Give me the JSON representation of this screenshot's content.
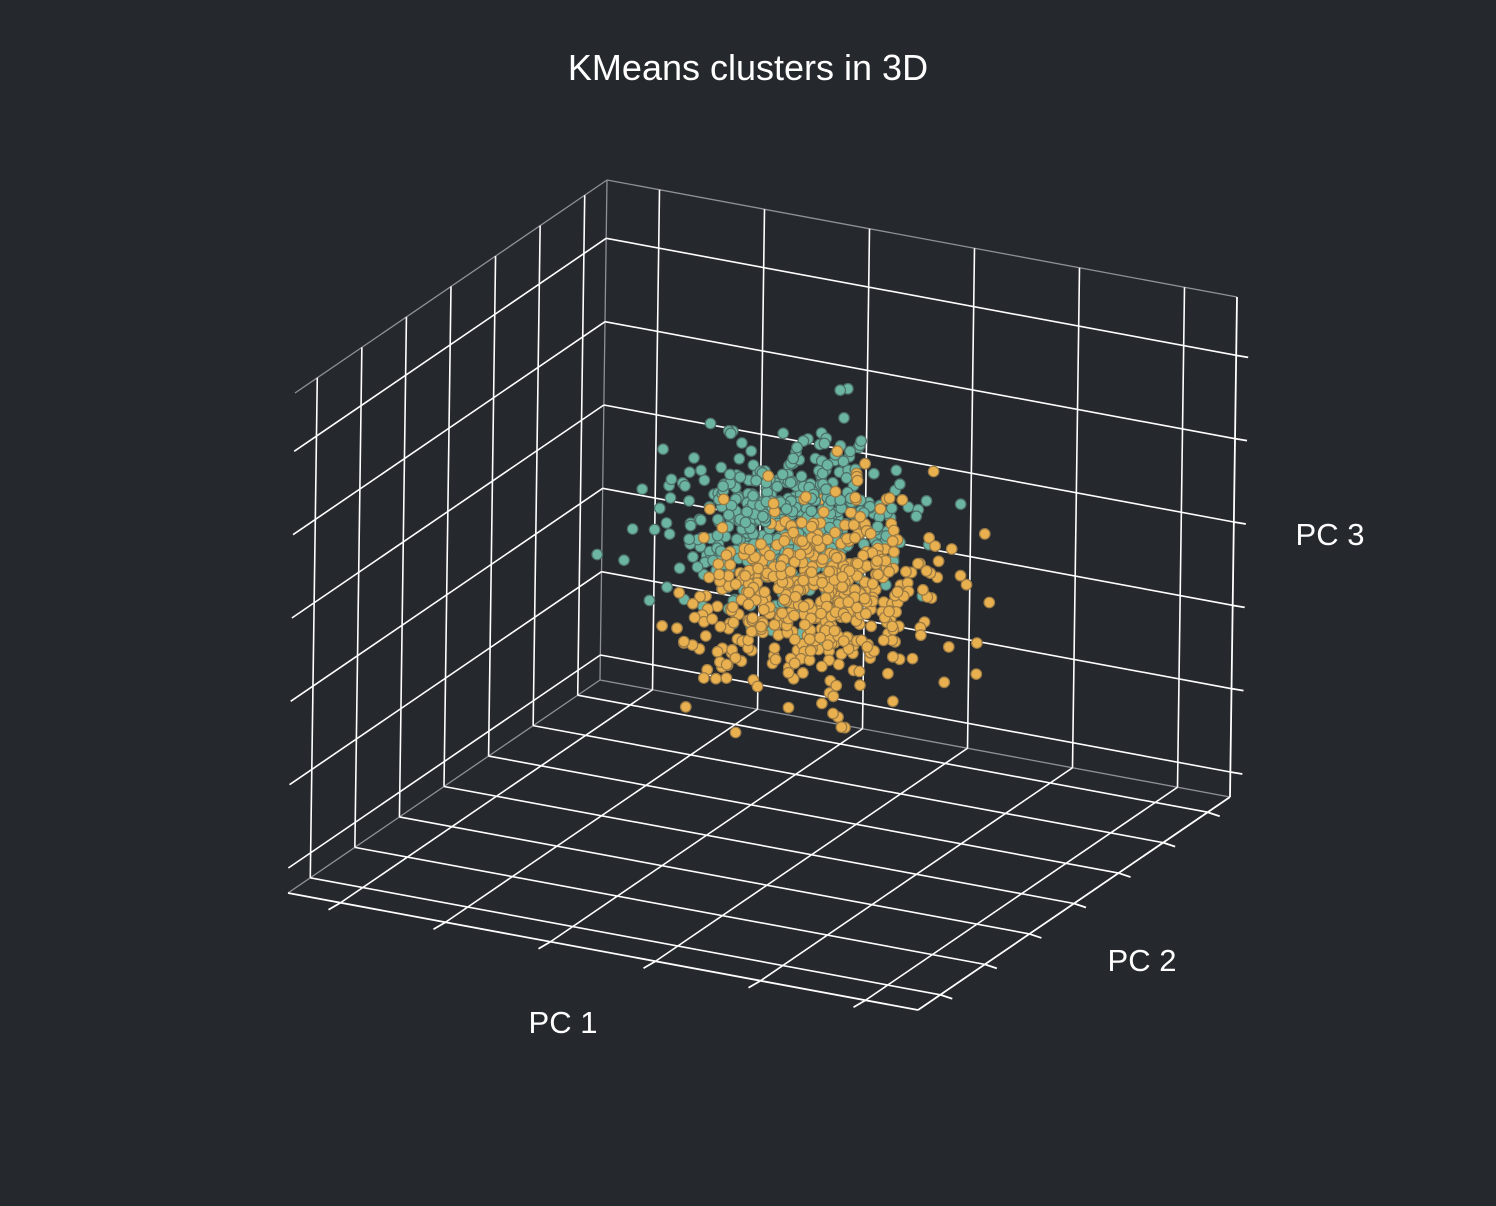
{
  "chart_data": {
    "type": "scatter",
    "projection": "3d",
    "title": "KMeans clusters in 3D",
    "xlabel": "PC 1",
    "ylabel": "PC 2",
    "zlabel": "PC 3",
    "xlim": [
      -4,
      4
    ],
    "ylim": [
      -3,
      3
    ],
    "zlim": [
      -3,
      2
    ],
    "grid": true,
    "legend": null,
    "background_color": "#25282d",
    "grid_color": "#ffffff",
    "tick_labels_shown": false,
    "point_count_estimate": 1000,
    "series": [
      {
        "cluster": 0,
        "color": "#6db5a3",
        "edge_color": "#4d6f68",
        "point_count_estimate": 500,
        "centroid": {
          "x": -0.6,
          "y": 1.3,
          "z": -0.3
        },
        "spread": {
          "x": 0.6,
          "y": 0.55,
          "z": 0.35
        },
        "extent": {
          "x": [
            -2.3,
            1.2
          ],
          "y": [
            -0.3,
            3.0
          ],
          "z": [
            -1.5,
            0.8
          ]
        }
      },
      {
        "cluster": 1,
        "color": "#e8b04f",
        "edge_color": "#9a7a45",
        "point_count_estimate": 500,
        "centroid": {
          "x": 0.8,
          "y": -0.2,
          "z": -0.35
        },
        "spread": {
          "x": 0.65,
          "y": 0.65,
          "z": 0.38
        },
        "extent": {
          "x": [
            -0.6,
            3.3
          ],
          "y": [
            -2.2,
            1.8
          ],
          "z": [
            -2.0,
            0.5
          ]
        }
      }
    ]
  }
}
